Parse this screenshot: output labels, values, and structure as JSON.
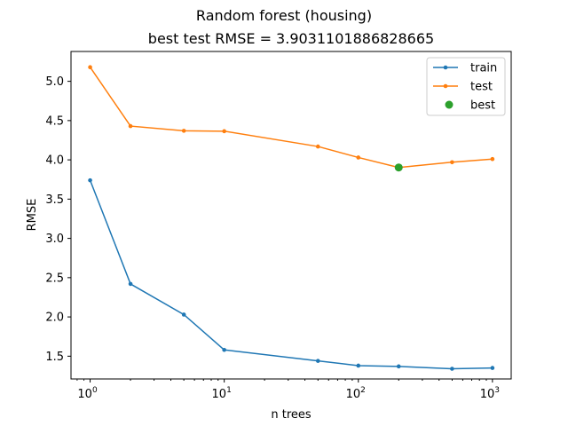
{
  "chart_data": {
    "type": "line",
    "title": "Random forest (housing)",
    "subtitle": "best test RMSE = 3.9031101886828665",
    "xlabel": "n trees",
    "ylabel": "RMSE",
    "xscale": "log",
    "xlim": [
      0.72,
      1380
    ],
    "ylim": [
      1.21,
      5.38
    ],
    "x_ticks": [
      {
        "value": 1,
        "mantissa": "10",
        "exp": "0"
      },
      {
        "value": 10,
        "mantissa": "10",
        "exp": "1"
      },
      {
        "value": 100,
        "mantissa": "10",
        "exp": "2"
      },
      {
        "value": 1000,
        "mantissa": "10",
        "exp": "3"
      }
    ],
    "y_ticks": [
      1.5,
      2.0,
      2.5,
      3.0,
      3.5,
      4.0,
      4.5,
      5.0
    ],
    "y_tick_labels": [
      "1.5",
      "2.0",
      "2.5",
      "3.0",
      "3.5",
      "4.0",
      "4.5",
      "5.0"
    ],
    "grid": false,
    "legend_position": "top-right",
    "x": [
      1,
      2,
      5,
      10,
      50,
      100,
      200,
      500,
      1000
    ],
    "series": [
      {
        "name": "train",
        "color": "#1f77b4",
        "marker": "dot",
        "values": [
          3.74,
          2.42,
          2.03,
          1.58,
          1.44,
          1.38,
          1.37,
          1.34,
          1.35
        ]
      },
      {
        "name": "test",
        "color": "#ff7f0e",
        "marker": "dot",
        "values": [
          5.18,
          4.43,
          4.37,
          4.365,
          4.17,
          4.03,
          3.9031101886828665,
          3.97,
          4.01
        ]
      }
    ],
    "best": {
      "name": "best",
      "color": "#2ca02c",
      "x": 200,
      "y": 3.9031101886828665
    }
  }
}
